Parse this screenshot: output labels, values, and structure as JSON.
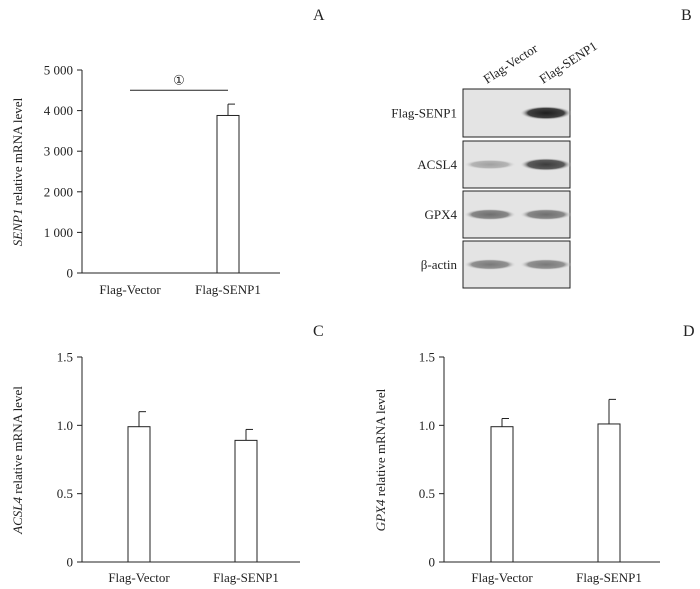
{
  "chart_data": [
    {
      "type": "bar",
      "panel_label": "A",
      "categories": [
        "Flag-Vector",
        "Flag-SENP1"
      ],
      "values": [
        0,
        3880
      ],
      "errors": [
        0,
        280
      ],
      "ylabel_italic": "SENP1",
      "ylabel_rest": " relative mRNA level",
      "yticks": [
        0,
        1000,
        2000,
        3000,
        4000,
        5000
      ],
      "ytick_labels": [
        "0",
        "1 000",
        "2 000",
        "3 000",
        "4 000",
        "5 000"
      ],
      "ylim": [
        0,
        5000
      ],
      "significance": {
        "symbol": "①",
        "between": [
          0,
          1
        ],
        "value": 4500
      },
      "grid": false
    },
    {
      "type": "bar",
      "panel_label": "C",
      "categories": [
        "Flag-Vector",
        "Flag-SENP1"
      ],
      "values": [
        0.99,
        0.89
      ],
      "errors": [
        0.11,
        0.08
      ],
      "ylabel_italic": "ACSL4",
      "ylabel_rest": " relative mRNA level",
      "yticks": [
        0,
        0.5,
        1.0,
        1.5
      ],
      "ytick_labels": [
        "0",
        "0.5",
        "1.0",
        "1.5"
      ],
      "ylim": [
        0,
        1.5
      ],
      "grid": false
    },
    {
      "type": "bar",
      "panel_label": "D",
      "categories": [
        "Flag-Vector",
        "Flag-SENP1"
      ],
      "values": [
        0.99,
        1.01
      ],
      "errors": [
        0.06,
        0.18
      ],
      "ylabel_italic": "GPX4",
      "ylabel_rest": " relative mRNA level",
      "yticks": [
        0,
        0.5,
        1.0,
        1.5
      ],
      "ytick_labels": [
        "0",
        "0.5",
        "1.0",
        "1.5"
      ],
      "ylim": [
        0,
        1.5
      ],
      "grid": false
    }
  ],
  "blot": {
    "panel_label": "B",
    "lanes": [
      "Flag-Vector",
      "Flag-SENP1"
    ],
    "rows": [
      {
        "label": "Flag-SENP1",
        "intensities": [
          0.0,
          0.95
        ]
      },
      {
        "label": "ACSL4",
        "intensities": [
          0.3,
          0.8
        ]
      },
      {
        "label": "GPX4",
        "intensities": [
          0.55,
          0.55
        ]
      },
      {
        "label": "β-actin",
        "intensities": [
          0.5,
          0.5
        ]
      }
    ]
  }
}
